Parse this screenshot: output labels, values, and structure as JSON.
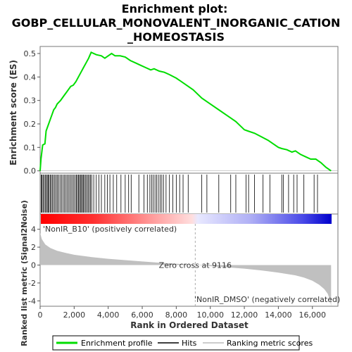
{
  "chart_data": {
    "type": "line",
    "title_lines": [
      "Enrichment plot:",
      "GOBP_CELLULAR_MONOVALENT_INORGANIC_CATION",
      "_HOMEOSTASIS"
    ],
    "es_panel": {
      "ylabel": "Enrichment score (ES)",
      "ylim": [
        -0.01,
        0.53
      ],
      "yticks": [
        0.0,
        0.1,
        0.2,
        0.3,
        0.4,
        0.5
      ],
      "ytick_labels": [
        "0.0",
        "0.1",
        "0.2",
        "0.3",
        "0.4",
        "0.5"
      ],
      "series": [
        {
          "name": "Enrichment profile",
          "color": "#00dd00",
          "x": [
            0,
            50,
            150,
            280,
            350,
            500,
            600,
            700,
            800,
            900,
            1000,
            1200,
            1400,
            1550,
            1700,
            1800,
            1950,
            2100,
            2250,
            2400,
            2550,
            2700,
            2850,
            3000,
            3300,
            3600,
            3800,
            4000,
            4200,
            4400,
            4700,
            5000,
            5300,
            5600,
            5900,
            6200,
            6500,
            6700,
            7000,
            7300,
            7600,
            8000,
            8500,
            9000,
            9500,
            10000,
            10500,
            11000,
            11500,
            12000,
            12200,
            12600,
            13000,
            13400,
            13700,
            14000,
            14200,
            14500,
            14800,
            15000,
            15300,
            15600,
            15900,
            16200,
            16500,
            16800,
            17100
          ],
          "y": [
            0.0,
            0.05,
            0.11,
            0.115,
            0.17,
            0.2,
            0.22,
            0.24,
            0.26,
            0.27,
            0.285,
            0.3,
            0.32,
            0.335,
            0.35,
            0.36,
            0.365,
            0.38,
            0.4,
            0.42,
            0.44,
            0.46,
            0.48,
            0.505,
            0.495,
            0.49,
            0.48,
            0.49,
            0.5,
            0.49,
            0.49,
            0.485,
            0.47,
            0.46,
            0.45,
            0.44,
            0.43,
            0.435,
            0.425,
            0.42,
            0.41,
            0.395,
            0.37,
            0.345,
            0.31,
            0.285,
            0.26,
            0.235,
            0.21,
            0.175,
            0.17,
            0.16,
            0.145,
            0.13,
            0.115,
            0.1,
            0.095,
            0.09,
            0.08,
            0.085,
            0.07,
            0.06,
            0.05,
            0.05,
            0.035,
            0.015,
            0.0
          ]
        }
      ]
    },
    "hits": [
      60,
      110,
      170,
      230,
      300,
      360,
      420,
      480,
      530,
      600,
      660,
      720,
      800,
      870,
      950,
      1020,
      1100,
      1180,
      1260,
      1340,
      1420,
      1500,
      1580,
      1660,
      1740,
      1820,
      1900,
      1980,
      2060,
      2130,
      2190,
      2250,
      2310,
      2370,
      2430,
      2490,
      2550,
      2610,
      2680,
      2750,
      2820,
      2890,
      2960,
      3030,
      3150,
      3300,
      3450,
      3600,
      3800,
      3950,
      4100,
      4300,
      4500,
      4750,
      5000,
      5200,
      5350,
      5800,
      6100,
      6300,
      6450,
      6550,
      6650,
      6750,
      6850,
      6950,
      7050,
      7150,
      7250,
      7400,
      7600,
      7800,
      8000,
      8200,
      8400,
      8700,
      9500,
      9800,
      10500,
      11200,
      11500,
      12100,
      12250,
      12600,
      13100,
      13500,
      14200,
      14300,
      14600,
      14900,
      15100,
      15500,
      16100,
      16300
    ],
    "ranked_panel": {
      "ylabel": "Ranked list metric (Signal2Noise)",
      "ylim": [
        -4.6,
        4.6
      ],
      "yticks": [
        -4,
        -2,
        0,
        2,
        4
      ],
      "ytick_labels": [
        "-4",
        "-2",
        "0",
        "2",
        "4"
      ],
      "metric_x": [
        0,
        100,
        300,
        600,
        1000,
        1500,
        2000,
        3000,
        4000,
        5000,
        6000,
        7000,
        8000,
        9116,
        10000,
        11000,
        12000,
        13000,
        14000,
        15000,
        15500,
        16000,
        16400,
        16700,
        16900,
        17050,
        17100
      ],
      "metric_y": [
        3.6,
        2.9,
        2.3,
        1.9,
        1.6,
        1.35,
        1.15,
        0.9,
        0.7,
        0.55,
        0.4,
        0.27,
        0.15,
        0.0,
        -0.12,
        -0.25,
        -0.4,
        -0.6,
        -0.85,
        -1.15,
        -1.4,
        -1.75,
        -2.2,
        -2.7,
        -3.2,
        -4.0,
        -4.6
      ],
      "zero_cross_label": "Zero cross at 9116",
      "zero_cross_x": 9116,
      "pos_label": "'NonIR_B10' (positively correlated)",
      "neg_label": "'NonIR_DMSO' (negatively correlated)",
      "pos_color": "#ff0000",
      "neg_color": "#0000ff"
    },
    "x_axis": {
      "label": "Rank in Ordered Dataset",
      "xlim": [
        0,
        17500
      ],
      "xticks": [
        0,
        2000,
        4000,
        6000,
        8000,
        10000,
        12000,
        14000,
        16000
      ],
      "xtick_labels": [
        "0",
        "2,000",
        "4,000",
        "6,000",
        "8,000",
        "10,000",
        "12,000",
        "14,000",
        "16,000"
      ]
    },
    "legend": {
      "placement": "bottom",
      "entries": [
        {
          "name": "Enrichment profile",
          "color": "#00dd00"
        },
        {
          "name": "Hits",
          "color": "#000000"
        },
        {
          "name": "Ranking metric scores",
          "color": "#bbbbbb"
        }
      ]
    }
  }
}
